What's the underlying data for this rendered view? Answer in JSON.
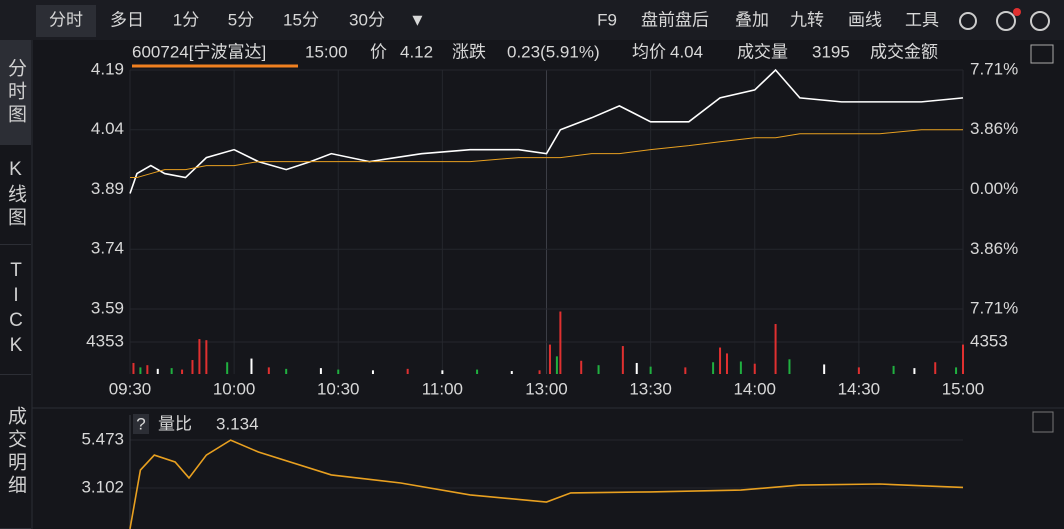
{
  "toolbar": {
    "tabs": [
      "分时",
      "多日",
      "1分",
      "5分",
      "15分",
      "30分"
    ],
    "right": [
      "F9",
      "盘前盘后",
      "叠加",
      "九转",
      "画线",
      "工具"
    ]
  },
  "side_tabs": [
    "分时图",
    "K线图",
    "TICK",
    "成交明细"
  ],
  "quote": {
    "code": "600724[宁波富达]",
    "time": "15:00",
    "price_label": "价",
    "price": "4.12",
    "change_label": "涨跌",
    "change": "0.23(5.91%)",
    "avg_label": "均价",
    "avg": "4.04",
    "volume_label": "成交量",
    "volume": "3195",
    "amount_label": "成交金额"
  },
  "chart_data": [
    {
      "type": "line",
      "x": [
        0,
        2,
        6,
        10,
        16,
        22,
        30,
        37,
        45,
        52,
        58,
        69,
        84,
        98,
        112,
        120,
        124,
        133,
        141,
        150,
        161,
        170,
        180,
        186,
        193,
        205,
        216,
        228,
        240
      ],
      "series": [
        {
          "color": "#ffffff",
          "values": [
            3.88,
            3.93,
            3.95,
            3.93,
            3.92,
            3.97,
            3.99,
            3.96,
            3.94,
            3.96,
            3.98,
            3.96,
            3.98,
            3.99,
            3.99,
            3.98,
            4.04,
            4.07,
            4.1,
            4.06,
            4.06,
            4.12,
            4.14,
            4.19,
            4.12,
            4.11,
            4.11,
            4.11,
            4.12
          ]
        },
        {
          "color": "#e8a020",
          "values": [
            3.92,
            3.92,
            3.93,
            3.94,
            3.94,
            3.95,
            3.95,
            3.96,
            3.96,
            3.96,
            3.96,
            3.96,
            3.96,
            3.96,
            3.97,
            3.97,
            3.97,
            3.98,
            3.98,
            3.99,
            4.0,
            4.01,
            4.02,
            4.02,
            4.03,
            4.03,
            4.03,
            4.04,
            4.04
          ]
        }
      ],
      "xlim": [
        0,
        240
      ],
      "xticks": [
        {
          "value": 0,
          "label": "09:30"
        },
        {
          "value": 30,
          "label": "10:00"
        },
        {
          "value": 60,
          "label": "10:30"
        },
        {
          "value": 90,
          "label": "11:00"
        },
        {
          "value": 120,
          "label": "13:00"
        },
        {
          "value": 150,
          "label": "13:30"
        },
        {
          "value": 180,
          "label": "14:00"
        },
        {
          "value": 210,
          "label": "14:30"
        },
        {
          "value": 240,
          "label": "15:00"
        }
      ],
      "ylim": [
        3.59,
        4.19
      ],
      "yticks": [
        4.19,
        4.04,
        3.89,
        3.74,
        3.59
      ],
      "y2lim": [
        -7.71,
        7.71
      ],
      "y2ticks": [
        {
          "value": 7.71,
          "label": "7.71%"
        },
        {
          "value": 3.86,
          "label": "3.86%"
        },
        {
          "value": 0,
          "label": "0.00%"
        },
        {
          "value": -3.86,
          "label": "3.86%"
        },
        {
          "value": -7.71,
          "label": "7.71%"
        }
      ],
      "grid": true
    },
    {
      "type": "bar",
      "x": [
        1,
        3,
        5,
        8,
        12,
        15,
        18,
        20,
        22,
        28,
        35,
        40,
        45,
        55,
        60,
        70,
        80,
        90,
        100,
        110,
        118,
        121,
        123,
        124,
        130,
        135,
        142,
        146,
        150,
        160,
        168,
        170,
        172,
        176,
        180,
        186,
        190,
        200,
        210,
        220,
        226,
        232,
        238,
        240
      ],
      "values": [
        1500,
        900,
        1200,
        700,
        800,
        600,
        1900,
        4750,
        4600,
        1600,
        2100,
        900,
        700,
        800,
        600,
        500,
        700,
        500,
        600,
        400,
        500,
        4000,
        2400,
        8500,
        1800,
        1200,
        3800,
        1500,
        1000,
        900,
        1600,
        3600,
        2800,
        1700,
        1400,
        6800,
        2000,
        1300,
        900,
        1100,
        800,
        1600,
        900,
        4000
      ],
      "colors": [
        "#e03030",
        "#20b040",
        "#e03030",
        "#ffffff",
        "#20b040",
        "#e03030",
        "#e03030",
        "#e03030",
        "#e03030",
        "#20b040",
        "#ffffff",
        "#e03030",
        "#20b040",
        "#ffffff",
        "#20b040",
        "#ffffff",
        "#e03030",
        "#ffffff",
        "#20b040",
        "#ffffff",
        "#e03030",
        "#e03030",
        "#20b040",
        "#e03030",
        "#e03030",
        "#20b040",
        "#e03030",
        "#ffffff",
        "#20b040",
        "#e03030",
        "#20b040",
        "#e03030",
        "#e03030",
        "#20b040",
        "#e03030",
        "#e03030",
        "#20b040",
        "#ffffff",
        "#e03030",
        "#20b040",
        "#ffffff",
        "#e03030",
        "#20b040",
        "#e03030"
      ],
      "xlim": [
        0,
        240
      ],
      "ylim": [
        0,
        8706
      ],
      "yticks": [
        4353
      ]
    },
    {
      "type": "line",
      "help": "?",
      "title": "量比",
      "last": "3.134",
      "x": [
        0,
        3,
        7,
        13,
        17,
        22,
        29,
        37,
        58,
        78,
        98,
        120,
        127,
        150,
        176,
        193,
        216,
        240
      ],
      "series": [
        {
          "color": "#e8a020",
          "values": [
            1.08,
            3.99,
            4.73,
            4.39,
            3.6,
            4.73,
            5.47,
            4.88,
            3.75,
            3.35,
            2.76,
            2.41,
            2.86,
            2.91,
            3.0,
            3.25,
            3.3,
            3.13
          ]
        }
      ],
      "xlim": [
        0,
        240
      ],
      "ylim": [
        1.077,
        6.71
      ],
      "yticks": [
        5.473,
        3.102
      ]
    }
  ]
}
